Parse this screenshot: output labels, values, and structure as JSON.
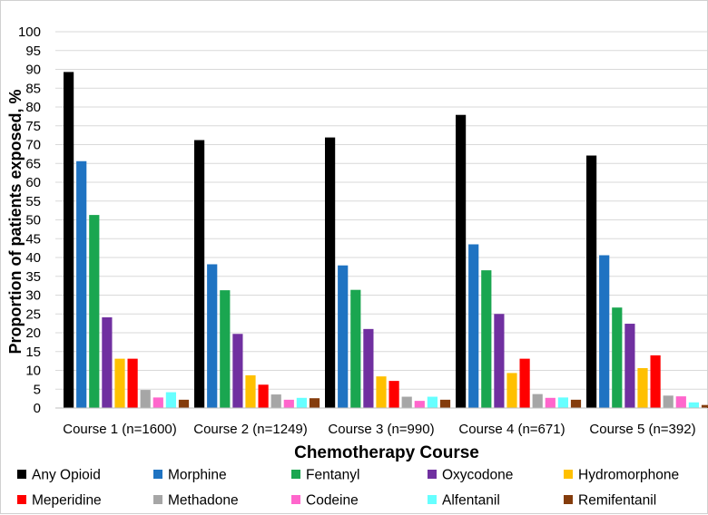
{
  "chart_data": {
    "type": "bar",
    "title": "",
    "xlabel": "Chemotherapy Course",
    "ylabel": "Proportion of patients exposed, %",
    "ylim": [
      0,
      100
    ],
    "ytick_step": 5,
    "grid": true,
    "legend_position": "bottom",
    "categories": [
      "Course 1 (n=1600)",
      "Course 2 (n=1249)",
      "Course 3 (n=990)",
      "Course 4 (n=671)",
      "Course 5 (n=392)"
    ],
    "series": [
      {
        "name": "Any Opioid",
        "color": "#000000",
        "values": [
          89.3,
          71.2,
          71.9,
          77.9,
          67.1
        ]
      },
      {
        "name": "Morphine",
        "color": "#1f73c2",
        "values": [
          65.6,
          38.2,
          37.9,
          43.5,
          40.6
        ]
      },
      {
        "name": "Fentanyl",
        "color": "#1aa650",
        "values": [
          51.3,
          31.3,
          31.4,
          36.6,
          26.7
        ]
      },
      {
        "name": "Oxycodone",
        "color": "#7030a0",
        "values": [
          24.1,
          19.7,
          21.0,
          25.0,
          22.4
        ]
      },
      {
        "name": "Hydromorphone",
        "color": "#ffc000",
        "values": [
          13.1,
          8.7,
          8.4,
          9.3,
          10.6
        ]
      },
      {
        "name": "Meperidine",
        "color": "#ff0000",
        "values": [
          13.1,
          6.2,
          7.2,
          13.1,
          14.0
        ]
      },
      {
        "name": "Methadone",
        "color": "#a6a6a6",
        "values": [
          4.8,
          3.6,
          3.0,
          3.7,
          3.3
        ]
      },
      {
        "name": "Codeine",
        "color": "#ff66cc",
        "values": [
          2.8,
          2.2,
          1.9,
          2.7,
          3.1
        ]
      },
      {
        "name": "Alfentanil",
        "color": "#66ffff",
        "values": [
          4.2,
          2.7,
          3.0,
          2.8,
          1.5
        ]
      },
      {
        "name": "Remifentanil",
        "color": "#843c0c",
        "values": [
          2.2,
          2.6,
          2.2,
          2.2,
          0.8
        ]
      }
    ]
  }
}
